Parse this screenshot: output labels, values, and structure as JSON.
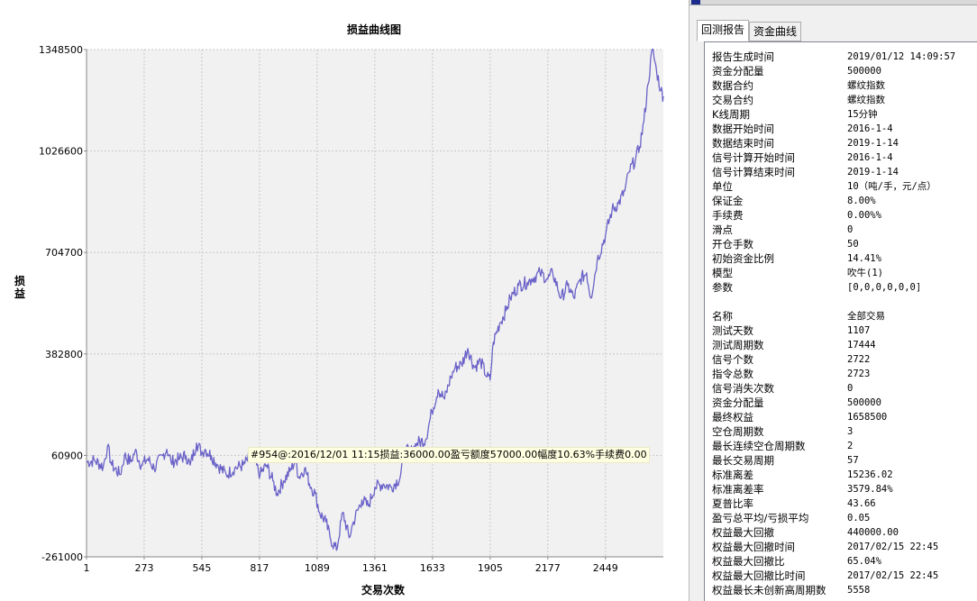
{
  "chart_data": {
    "type": "line",
    "title": "损益曲线图",
    "xlabel": "交易次数",
    "ylabel": "损益",
    "x_ticks": [
      1,
      273,
      545,
      817,
      1089,
      1361,
      1633,
      1905,
      2177,
      2449
    ],
    "y_ticks": [
      -261000,
      60900,
      382800,
      704700,
      1026600,
      1348500
    ],
    "xlim": [
      1,
      2722
    ],
    "ylim": [
      -261000,
      1348500
    ],
    "grid": true,
    "line_color": "#6a62c8",
    "series": [
      {
        "x": [
          1,
          40,
          80,
          100,
          120,
          160,
          180,
          210,
          230,
          260,
          290,
          320,
          360,
          380,
          400,
          440,
          470,
          490,
          520,
          545,
          560,
          590,
          620,
          660,
          700,
          740,
          780,
          820,
          850,
          880,
          900,
          930,
          960,
          990,
          1000,
          1030,
          1060,
          1080,
          1100,
          1130,
          1150,
          1180,
          1210,
          1240,
          1260,
          1300,
          1330,
          1361,
          1400,
          1440,
          1480,
          1500,
          1530,
          1560,
          1600,
          1630,
          1660,
          1690,
          1720,
          1740,
          1770,
          1800,
          1830,
          1860,
          1890,
          1905,
          1920,
          1950,
          1980,
          2000,
          2040,
          2080,
          2100,
          2140,
          2177,
          2200,
          2240,
          2270,
          2300,
          2330,
          2360,
          2380,
          2410,
          2449,
          2480,
          2510,
          2540,
          2560,
          2590,
          2610,
          2630,
          2650,
          2670,
          2690,
          2710,
          2722
        ],
        "y": [
          40000,
          45000,
          25000,
          90000,
          30000,
          0,
          60000,
          40000,
          75000,
          30000,
          50000,
          20000,
          60000,
          80000,
          40000,
          50000,
          60000,
          30000,
          100000,
          70000,
          80000,
          60000,
          30000,
          0,
          20000,
          30000,
          60000,
          0,
          30000,
          -20000,
          -60000,
          -20000,
          10000,
          50000,
          -10000,
          20000,
          -40000,
          -60000,
          -120000,
          -150000,
          -200000,
          -240000,
          -120000,
          -200000,
          -150000,
          -80000,
          -100000,
          -40000,
          -30000,
          -40000,
          -10000,
          80000,
          70000,
          100000,
          110000,
          200000,
          270000,
          240000,
          310000,
          340000,
          350000,
          400000,
          340000,
          360000,
          310000,
          300000,
          420000,
          480000,
          520000,
          560000,
          600000,
          610000,
          620000,
          640000,
          620000,
          640000,
          560000,
          600000,
          560000,
          620000,
          640000,
          560000,
          680000,
          760000,
          840000,
          860000,
          900000,
          960000,
          1000000,
          1040000,
          1120000,
          1240000,
          1350000,
          1280000,
          1220000,
          1200000
        ]
      }
    ]
  },
  "tooltip": "#954@:2016/12/01 11:15损益:36000.00盈亏额度57000.00幅度10.63%手续费0.00",
  "tabs": [
    {
      "label": "回测报告",
      "active": true
    },
    {
      "label": "资金曲线",
      "active": false
    }
  ],
  "report": {
    "rows": [
      {
        "label": "报告生成时间",
        "value": "2019/01/12 14:09:57"
      },
      {
        "label": "资金分配量",
        "value": "500000"
      },
      {
        "label": "数据合约",
        "value": "螺纹指数"
      },
      {
        "label": "交易合约",
        "value": "螺纹指数"
      },
      {
        "label": "K线周期",
        "value": "15分钟"
      },
      {
        "label": "数据开始时间",
        "value": "2016-1-4"
      },
      {
        "label": "数据结束时间",
        "value": "2019-1-14"
      },
      {
        "label": "信号计算开始时间",
        "value": "2016-1-4"
      },
      {
        "label": "信号计算结束时间",
        "value": "2019-1-14"
      },
      {
        "label": "单位",
        "value": "10（吨/手，元/点）"
      },
      {
        "label": "保证金",
        "value": "8.00%"
      },
      {
        "label": "手续费",
        "value": "0.00%%"
      },
      {
        "label": "滑点",
        "value": "0"
      },
      {
        "label": "开仓手数",
        "value": "50"
      },
      {
        "label": "初始资金比例",
        "value": "14.41%"
      },
      {
        "label": "模型",
        "value": "吹牛(1)"
      },
      {
        "label": "参数",
        "value": "[0,0,0,0,0,0]"
      },
      {
        "label": "",
        "value": ""
      },
      {
        "label": "名称",
        "value": "全部交易"
      },
      {
        "label": "测试天数",
        "value": "1107"
      },
      {
        "label": "测试周期数",
        "value": "17444"
      },
      {
        "label": "信号个数",
        "value": "2722"
      },
      {
        "label": "指令总数",
        "value": "2723"
      },
      {
        "label": "信号消失次数",
        "value": "0"
      },
      {
        "label": "资金分配量",
        "value": "500000"
      },
      {
        "label": "最终权益",
        "value": "1658500"
      },
      {
        "label": "空仓周期数",
        "value": "3"
      },
      {
        "label": "最长连续空仓周期数",
        "value": "2"
      },
      {
        "label": "最长交易周期",
        "value": "57"
      },
      {
        "label": "标准离差",
        "value": "15236.02"
      },
      {
        "label": "标准离差率",
        "value": "3579.84%"
      },
      {
        "label": "夏普比率",
        "value": "43.66"
      },
      {
        "label": "盈亏总平均/亏损平均",
        "value": "0.05"
      },
      {
        "label": "权益最大回撤",
        "value": "440000.00"
      },
      {
        "label": "权益最大回撤时间",
        "value": "2017/02/15 22:45"
      },
      {
        "label": "权益最大回撤比",
        "value": "65.04%"
      },
      {
        "label": "权益最大回撤比时间",
        "value": "2017/02/15 22:45"
      },
      {
        "label": "权益最长未创新高周期数",
        "value": "5558"
      }
    ]
  }
}
